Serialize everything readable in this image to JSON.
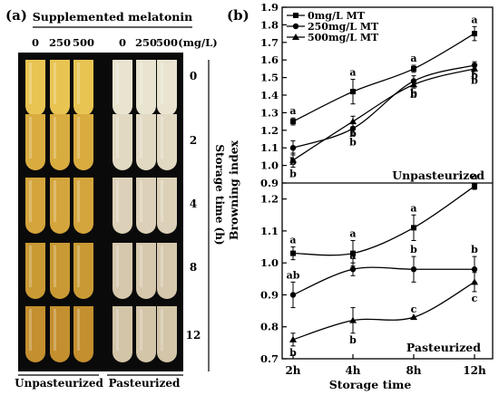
{
  "panel_a": {
    "label": "(a)",
    "supplement_title": "Supplemented melatonin",
    "conc_unpast": [
      "0",
      "250",
      "500"
    ],
    "conc_past": [
      "0",
      "250",
      "500"
    ],
    "unit": "(mg/L)",
    "storage_axis_title": "Storage time (h)",
    "storage_labels": [
      "0",
      "2",
      "4",
      "8",
      "12"
    ],
    "group_unpast": "Unpasteurized",
    "group_past": "Pasteurized",
    "colors": {
      "unpast_tube": [
        "#e8c452",
        "#d9ac40",
        "#d4a53c",
        "#c99a34",
        "#c48f2f"
      ],
      "past_tube": [
        "#e9e4d0",
        "#e1d9c2",
        "#dcd1b8",
        "#d6c8ad",
        "#d3c5a8"
      ],
      "background": "#0a0a0a"
    }
  },
  "chart_data": {
    "type": "line",
    "label": "(b)",
    "x": [
      "2h",
      "4h",
      "8h",
      "12h"
    ],
    "xlabel": "Storage time",
    "ylabel": "Browning index",
    "legend": {
      "placement": "top-left",
      "entries": [
        "0mg/L MT",
        "250mg/L MT",
        "500mg/L MT"
      ]
    },
    "panels": [
      {
        "name": "Unpasteurized",
        "ylim": [
          0.9,
          1.9
        ],
        "yticks": [
          "0.9",
          "1.0",
          "1.1",
          "1.2",
          "1.3",
          "1.4",
          "1.5",
          "1.6",
          "1.7",
          "1.8",
          "1.9"
        ],
        "series": [
          {
            "marker": "square",
            "values": [
              1.25,
              1.42,
              1.55,
              1.75
            ],
            "errors": [
              0.02,
              0.07,
              0.02,
              0.04
            ],
            "letters": [
              "a",
              "a",
              "a",
              "a"
            ]
          },
          {
            "marker": "circle",
            "values": [
              1.1,
              1.21,
              1.48,
              1.57
            ],
            "errors": [
              0.04,
              0.04,
              0.03,
              0.02
            ],
            "letters": [
              "b",
              "b",
              "b",
              "b"
            ]
          },
          {
            "marker": "triangle",
            "values": [
              1.03,
              1.25,
              1.46,
              1.55
            ],
            "errors": [
              0.04,
              0.03,
              0.02,
              0.03
            ],
            "letters": [
              "b",
              "b",
              "b",
              "b"
            ]
          }
        ]
      },
      {
        "name": "Pasteurized",
        "ylim": [
          0.7,
          1.25
        ],
        "yticks": [
          "0.7",
          "0.8",
          "0.9",
          "1.0",
          "1.1",
          "1.2"
        ],
        "series": [
          {
            "marker": "square",
            "values": [
              1.03,
              1.03,
              1.11,
              1.24
            ],
            "errors": [
              0.02,
              0.04,
              0.04,
              0.01
            ],
            "letters": [
              "a",
              "a",
              "a",
              "a"
            ]
          },
          {
            "marker": "circle",
            "values": [
              0.9,
              0.98,
              0.98,
              0.98
            ],
            "errors": [
              0.04,
              0.02,
              0.04,
              0.04
            ],
            "letters": [
              "ab",
              "a",
              "b",
              "b"
            ]
          },
          {
            "marker": "triangle",
            "values": [
              0.76,
              0.82,
              0.83,
              0.94
            ],
            "errors": [
              0.02,
              0.04,
              0.0,
              0.03
            ],
            "letters": [
              "b",
              "b",
              "c",
              "c"
            ]
          }
        ]
      }
    ]
  }
}
